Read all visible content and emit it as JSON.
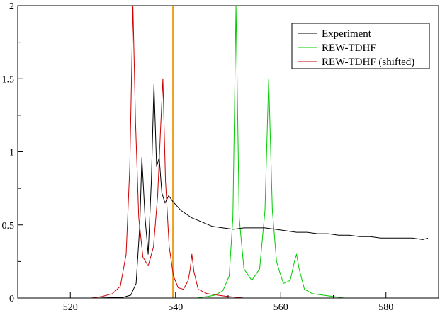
{
  "chart_data": {
    "type": "line",
    "title": "",
    "xlabel": "",
    "ylabel": "",
    "xlim": [
      510,
      590
    ],
    "ylim": [
      0,
      2
    ],
    "x_ticks": [
      520,
      540,
      560,
      580
    ],
    "x_tick_labels": [
      "520",
      "540",
      "560",
      "580"
    ],
    "y_ticks": [
      0,
      0.5,
      1,
      1.5,
      2
    ],
    "y_tick_labels": [
      "0",
      "0.5",
      "1",
      "1.5",
      "2"
    ],
    "grid": false,
    "legend_position": "top-right",
    "legend": [
      "Experiment",
      "REW-TDHF",
      "REW-TDHF (shifted)"
    ],
    "series": [
      {
        "name": "Experiment",
        "color": "#000000",
        "points": [
          [
            518,
            0.0
          ],
          [
            525,
            0.0
          ],
          [
            530,
            0.005
          ],
          [
            531.5,
            0.02
          ],
          [
            532.5,
            0.1
          ],
          [
            533.2,
            0.5
          ],
          [
            533.6,
            0.96
          ],
          [
            534.2,
            0.55
          ],
          [
            534.8,
            0.3
          ],
          [
            535.4,
            0.8
          ],
          [
            535.9,
            1.46
          ],
          [
            536.4,
            0.9
          ],
          [
            536.9,
            0.96
          ],
          [
            537.4,
            0.72
          ],
          [
            538,
            0.65
          ],
          [
            538.7,
            0.7
          ],
          [
            539.5,
            0.66
          ],
          [
            541,
            0.6
          ],
          [
            543,
            0.55
          ],
          [
            545,
            0.52
          ],
          [
            547,
            0.49
          ],
          [
            549,
            0.48
          ],
          [
            551,
            0.47
          ],
          [
            553,
            0.48
          ],
          [
            555,
            0.48
          ],
          [
            557,
            0.48
          ],
          [
            559,
            0.47
          ],
          [
            561,
            0.46
          ],
          [
            563,
            0.45
          ],
          [
            565,
            0.45
          ],
          [
            567,
            0.44
          ],
          [
            569,
            0.44
          ],
          [
            571,
            0.43
          ],
          [
            573,
            0.43
          ],
          [
            575,
            0.42
          ],
          [
            577,
            0.42
          ],
          [
            579,
            0.41
          ],
          [
            581,
            0.41
          ],
          [
            583,
            0.41
          ],
          [
            585,
            0.41
          ],
          [
            587,
            0.4
          ],
          [
            588,
            0.41
          ]
        ]
      },
      {
        "name": "REW-TDHF",
        "color": "#00cc00",
        "points": [
          [
            544,
            0.0
          ],
          [
            546,
            0.01
          ],
          [
            547.5,
            0.02
          ],
          [
            549,
            0.05
          ],
          [
            550.2,
            0.15
          ],
          [
            550.9,
            0.55
          ],
          [
            551.5,
            2.0
          ],
          [
            552.1,
            0.55
          ],
          [
            553,
            0.2
          ],
          [
            554.5,
            0.12
          ],
          [
            556,
            0.2
          ],
          [
            557,
            0.6
          ],
          [
            557.7,
            1.5
          ],
          [
            558.4,
            0.6
          ],
          [
            559.2,
            0.25
          ],
          [
            559.6,
            0.2
          ],
          [
            560.5,
            0.1
          ],
          [
            561.8,
            0.12
          ],
          [
            562.6,
            0.25
          ],
          [
            563,
            0.3
          ],
          [
            563.5,
            0.2
          ],
          [
            564.5,
            0.06
          ],
          [
            566,
            0.03
          ],
          [
            568,
            0.02
          ],
          [
            570,
            0.01
          ],
          [
            572,
            0.0
          ]
        ]
      },
      {
        "name": "REW-TDHF (shifted)",
        "color": "#cc0000",
        "points": [
          [
            524,
            0.0
          ],
          [
            526,
            0.01
          ],
          [
            528,
            0.03
          ],
          [
            529.5,
            0.08
          ],
          [
            530.6,
            0.3
          ],
          [
            531.3,
            0.9
          ],
          [
            531.9,
            2.0
          ],
          [
            532.4,
            1.2
          ],
          [
            533,
            0.55
          ],
          [
            533.8,
            0.28
          ],
          [
            534.8,
            0.22
          ],
          [
            535.8,
            0.35
          ],
          [
            536.6,
            0.7
          ],
          [
            537.2,
            1.2
          ],
          [
            537.6,
            1.5
          ],
          [
            538.1,
            0.8
          ],
          [
            538.8,
            0.35
          ],
          [
            539.6,
            0.15
          ],
          [
            540.5,
            0.07
          ],
          [
            541.5,
            0.06
          ],
          [
            542.4,
            0.12
          ],
          [
            542.8,
            0.2
          ],
          [
            543.1,
            0.3
          ],
          [
            543.5,
            0.18
          ],
          [
            544.3,
            0.06
          ],
          [
            546,
            0.03
          ],
          [
            548,
            0.02
          ],
          [
            550,
            0.01
          ],
          [
            553,
            0.0
          ]
        ]
      }
    ],
    "vertical_line": {
      "x": 539.5,
      "color": "#f0a020"
    }
  }
}
